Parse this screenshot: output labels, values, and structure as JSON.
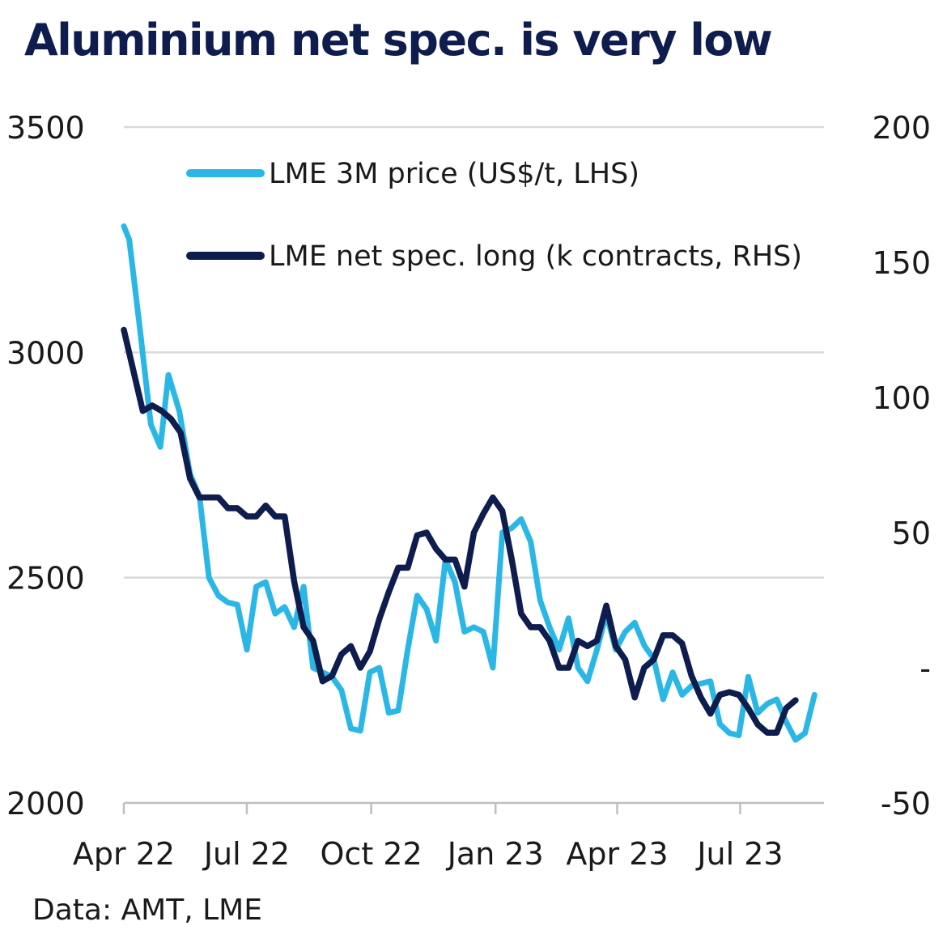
{
  "title": "Aluminium net spec. is very low",
  "source": "Data: AMT, LME",
  "colors": {
    "price": "#2bb7e6",
    "spec": "#0e1c4e",
    "grid": "#d9d9d9",
    "axis": "#bfbfbf"
  },
  "chart_data": {
    "type": "line",
    "title": "Aluminium net spec. is very low",
    "grid": true,
    "legend_position": "top",
    "x_range": [
      "2022-04-01",
      "2023-09-01"
    ],
    "x_ticks": [
      {
        "date": "2022-04-01",
        "label": "Apr 22"
      },
      {
        "date": "2022-07-01",
        "label": "Jul 22"
      },
      {
        "date": "2022-10-01",
        "label": "Oct 22"
      },
      {
        "date": "2023-01-01",
        "label": "Jan 23"
      },
      {
        "date": "2023-04-01",
        "label": "Apr 23"
      },
      {
        "date": "2023-07-01",
        "label": "Jul 23"
      }
    ],
    "y_left": {
      "range": [
        2000,
        3500
      ],
      "ticks": [
        {
          "value": 2000,
          "label": "2000"
        },
        {
          "value": 2500,
          "label": "2500"
        },
        {
          "value": 3000,
          "label": "3000"
        },
        {
          "value": 3500,
          "label": "3500"
        }
      ]
    },
    "y_right": {
      "range": [
        -50,
        200
      ],
      "ticks": [
        {
          "value": -50,
          "label": "-50"
        },
        {
          "value": 0,
          "label": "-"
        },
        {
          "value": 50,
          "label": "50"
        },
        {
          "value": 100,
          "label": "100"
        },
        {
          "value": 150,
          "label": "150"
        },
        {
          "value": 200,
          "label": "200"
        }
      ]
    },
    "series": [
      {
        "name": "LME 3M price (US$/t, LHS)",
        "axis": "left",
        "color": "#2bb7e6",
        "points": [
          [
            "2022-04-01",
            3280
          ],
          [
            "2022-04-05",
            3250
          ],
          [
            "2022-04-13",
            3050
          ],
          [
            "2022-04-21",
            2840
          ],
          [
            "2022-04-28",
            2790
          ],
          [
            "2022-05-04",
            2950
          ],
          [
            "2022-05-12",
            2870
          ],
          [
            "2022-05-20",
            2730
          ],
          [
            "2022-05-27",
            2680
          ],
          [
            "2022-06-03",
            2500
          ],
          [
            "2022-06-10",
            2460
          ],
          [
            "2022-06-17",
            2445
          ],
          [
            "2022-06-24",
            2440
          ],
          [
            "2022-07-01",
            2340
          ],
          [
            "2022-07-08",
            2480
          ],
          [
            "2022-07-15",
            2490
          ],
          [
            "2022-07-22",
            2420
          ],
          [
            "2022-07-29",
            2435
          ],
          [
            "2022-08-05",
            2390
          ],
          [
            "2022-08-12",
            2480
          ],
          [
            "2022-08-19",
            2300
          ],
          [
            "2022-08-26",
            2290
          ],
          [
            "2022-09-02",
            2280
          ],
          [
            "2022-09-09",
            2250
          ],
          [
            "2022-09-16",
            2165
          ],
          [
            "2022-09-23",
            2160
          ],
          [
            "2022-09-30",
            2290
          ],
          [
            "2022-10-07",
            2300
          ],
          [
            "2022-10-14",
            2200
          ],
          [
            "2022-10-21",
            2205
          ],
          [
            "2022-10-28",
            2340
          ],
          [
            "2022-11-04",
            2460
          ],
          [
            "2022-11-11",
            2430
          ],
          [
            "2022-11-18",
            2360
          ],
          [
            "2022-11-25",
            2540
          ],
          [
            "2022-12-02",
            2490
          ],
          [
            "2022-12-09",
            2380
          ],
          [
            "2022-12-16",
            2390
          ],
          [
            "2022-12-23",
            2380
          ],
          [
            "2022-12-30",
            2300
          ],
          [
            "2023-01-06",
            2600
          ],
          [
            "2023-01-13",
            2610
          ],
          [
            "2023-01-20",
            2630
          ],
          [
            "2023-01-27",
            2580
          ],
          [
            "2023-02-03",
            2450
          ],
          [
            "2023-02-10",
            2390
          ],
          [
            "2023-02-17",
            2340
          ],
          [
            "2023-02-24",
            2410
          ],
          [
            "2023-03-03",
            2300
          ],
          [
            "2023-03-10",
            2270
          ],
          [
            "2023-03-17",
            2340
          ],
          [
            "2023-03-24",
            2420
          ],
          [
            "2023-03-31",
            2340
          ],
          [
            "2023-04-07",
            2380
          ],
          [
            "2023-04-14",
            2400
          ],
          [
            "2023-04-21",
            2350
          ],
          [
            "2023-04-28",
            2320
          ],
          [
            "2023-05-05",
            2230
          ],
          [
            "2023-05-12",
            2290
          ],
          [
            "2023-05-19",
            2240
          ],
          [
            "2023-05-26",
            2260
          ],
          [
            "2023-06-02",
            2265
          ],
          [
            "2023-06-09",
            2270
          ],
          [
            "2023-06-16",
            2175
          ],
          [
            "2023-06-23",
            2155
          ],
          [
            "2023-06-30",
            2150
          ],
          [
            "2023-07-07",
            2280
          ],
          [
            "2023-07-14",
            2200
          ],
          [
            "2023-07-21",
            2220
          ],
          [
            "2023-07-28",
            2230
          ],
          [
            "2023-08-04",
            2180
          ],
          [
            "2023-08-11",
            2140
          ],
          [
            "2023-08-18",
            2155
          ],
          [
            "2023-08-25",
            2240
          ]
        ]
      },
      {
        "name": "LME net spec. long (k contracts, RHS)",
        "axis": "right",
        "color": "#0e1c4e",
        "points": [
          [
            "2022-04-01",
            125
          ],
          [
            "2022-04-08",
            110
          ],
          [
            "2022-04-15",
            95
          ],
          [
            "2022-04-22",
            97
          ],
          [
            "2022-04-29",
            95
          ],
          [
            "2022-05-06",
            92
          ],
          [
            "2022-05-13",
            87
          ],
          [
            "2022-05-20",
            70
          ],
          [
            "2022-05-27",
            63
          ],
          [
            "2022-06-03",
            63
          ],
          [
            "2022-06-10",
            63
          ],
          [
            "2022-06-17",
            59
          ],
          [
            "2022-06-24",
            59
          ],
          [
            "2022-07-01",
            56
          ],
          [
            "2022-07-08",
            56
          ],
          [
            "2022-07-15",
            60
          ],
          [
            "2022-07-22",
            56
          ],
          [
            "2022-07-29",
            56
          ],
          [
            "2022-08-05",
            32
          ],
          [
            "2022-08-12",
            15
          ],
          [
            "2022-08-19",
            10
          ],
          [
            "2022-08-26",
            -5
          ],
          [
            "2022-09-02",
            -3
          ],
          [
            "2022-09-09",
            5
          ],
          [
            "2022-09-16",
            8
          ],
          [
            "2022-09-23",
            0
          ],
          [
            "2022-09-30",
            6
          ],
          [
            "2022-10-07",
            18
          ],
          [
            "2022-10-14",
            28
          ],
          [
            "2022-10-21",
            37
          ],
          [
            "2022-10-28",
            37
          ],
          [
            "2022-11-04",
            49
          ],
          [
            "2022-11-11",
            50
          ],
          [
            "2022-11-18",
            44
          ],
          [
            "2022-11-25",
            40
          ],
          [
            "2022-12-02",
            40
          ],
          [
            "2022-12-09",
            30
          ],
          [
            "2022-12-16",
            50
          ],
          [
            "2022-12-23",
            57
          ],
          [
            "2022-12-30",
            63
          ],
          [
            "2023-01-06",
            58
          ],
          [
            "2023-01-13",
            40
          ],
          [
            "2023-01-20",
            20
          ],
          [
            "2023-01-27",
            15
          ],
          [
            "2023-02-03",
            15
          ],
          [
            "2023-02-10",
            10
          ],
          [
            "2023-02-17",
            0
          ],
          [
            "2023-02-24",
            0
          ],
          [
            "2023-03-03",
            10
          ],
          [
            "2023-03-10",
            8
          ],
          [
            "2023-03-17",
            10
          ],
          [
            "2023-03-24",
            23
          ],
          [
            "2023-03-31",
            8
          ],
          [
            "2023-04-07",
            3
          ],
          [
            "2023-04-14",
            -11
          ],
          [
            "2023-04-21",
            0
          ],
          [
            "2023-04-28",
            3
          ],
          [
            "2023-05-05",
            12
          ],
          [
            "2023-05-12",
            12
          ],
          [
            "2023-05-19",
            9
          ],
          [
            "2023-05-26",
            -3
          ],
          [
            "2023-06-02",
            -11
          ],
          [
            "2023-06-09",
            -17
          ],
          [
            "2023-06-16",
            -10
          ],
          [
            "2023-06-23",
            -9
          ],
          [
            "2023-06-30",
            -10
          ],
          [
            "2023-07-07",
            -15
          ],
          [
            "2023-07-14",
            -21
          ],
          [
            "2023-07-21",
            -24
          ],
          [
            "2023-07-28",
            -24
          ],
          [
            "2023-08-04",
            -15
          ],
          [
            "2023-08-11",
            -12
          ]
        ]
      }
    ]
  }
}
